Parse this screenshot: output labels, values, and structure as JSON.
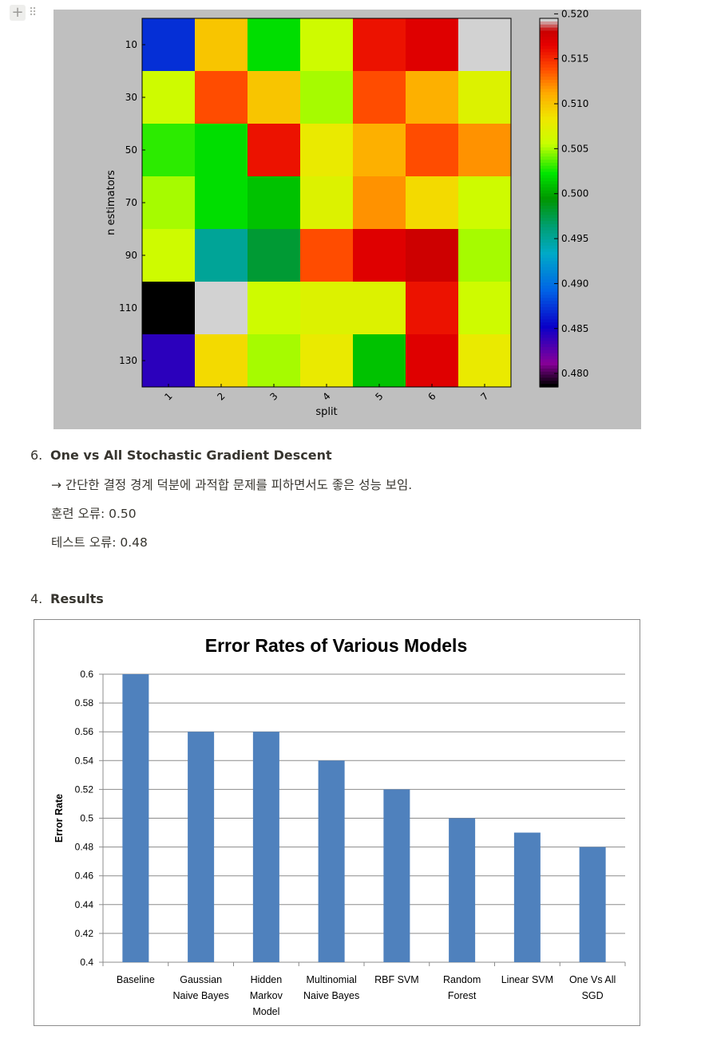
{
  "block_handle": {
    "plus": "+",
    "drag": "⠿"
  },
  "heatmap": {
    "chart_data": {
      "type": "heatmap",
      "xlabel": "split",
      "ylabel": "n estimators",
      "x_ticks": [
        "1",
        "2",
        "3",
        "4",
        "5",
        "6",
        "7"
      ],
      "y_ticks": [
        "10",
        "30",
        "50",
        "70",
        "90",
        "110",
        "130"
      ],
      "colorbar_ticks": [
        "0.480",
        "0.485",
        "0.490",
        "0.495",
        "0.500",
        "0.505",
        "0.510",
        "0.515",
        "0.520"
      ],
      "colorbar_range": [
        0.4785,
        0.5195
      ],
      "values": [
        [
          0.487,
          0.51,
          0.502,
          0.506,
          0.516,
          0.517,
          0.5195
        ],
        [
          0.506,
          0.514,
          0.51,
          0.505,
          0.514,
          0.511,
          0.507
        ],
        [
          0.503,
          0.502,
          0.516,
          0.508,
          0.511,
          0.514,
          0.512
        ],
        [
          0.505,
          0.502,
          0.501,
          0.507,
          0.512,
          0.509,
          0.506
        ],
        [
          0.506,
          0.495,
          0.498,
          0.514,
          0.517,
          0.518,
          0.505
        ],
        [
          0.4785,
          0.5195,
          0.506,
          0.507,
          0.507,
          0.516,
          0.506
        ],
        [
          0.484,
          0.509,
          0.505,
          0.508,
          0.501,
          0.517,
          0.508
        ]
      ]
    }
  },
  "section6": {
    "number": "6.",
    "title": "One vs All Stochastic Gradient Descent",
    "description": "→ 간단한 결정 경계 덕분에 과적합 문제를 피하면서도 좋은 성능 보임.",
    "train_error": "훈련 오류: 0.50",
    "test_error": "테스트 오류: 0.48"
  },
  "section4": {
    "number": "4.",
    "title": "Results"
  },
  "bar_chart": {
    "chart_data": {
      "type": "bar",
      "title": "Error Rates of Various Models",
      "ylabel": "Error Rate",
      "xlabel": "",
      "ylim": [
        0.4,
        0.6
      ],
      "y_ticks": [
        "0.4",
        "0.42",
        "0.44",
        "0.46",
        "0.48",
        "0.5",
        "0.52",
        "0.54",
        "0.56",
        "0.58",
        "0.6"
      ],
      "categories": [
        [
          "Baseline"
        ],
        [
          "Gaussian",
          "Naive Bayes"
        ],
        [
          "Hidden",
          "Markov",
          "Model"
        ],
        [
          "Multinomial",
          "Naive Bayes"
        ],
        [
          "RBF SVM"
        ],
        [
          "Random",
          "Forest"
        ],
        [
          "Linear SVM"
        ],
        [
          "One Vs All",
          "SGD"
        ]
      ],
      "values": [
        0.6,
        0.56,
        0.56,
        0.54,
        0.52,
        0.5,
        0.49,
        0.48
      ],
      "bar_color": "#4f81bd",
      "grid": true
    }
  }
}
